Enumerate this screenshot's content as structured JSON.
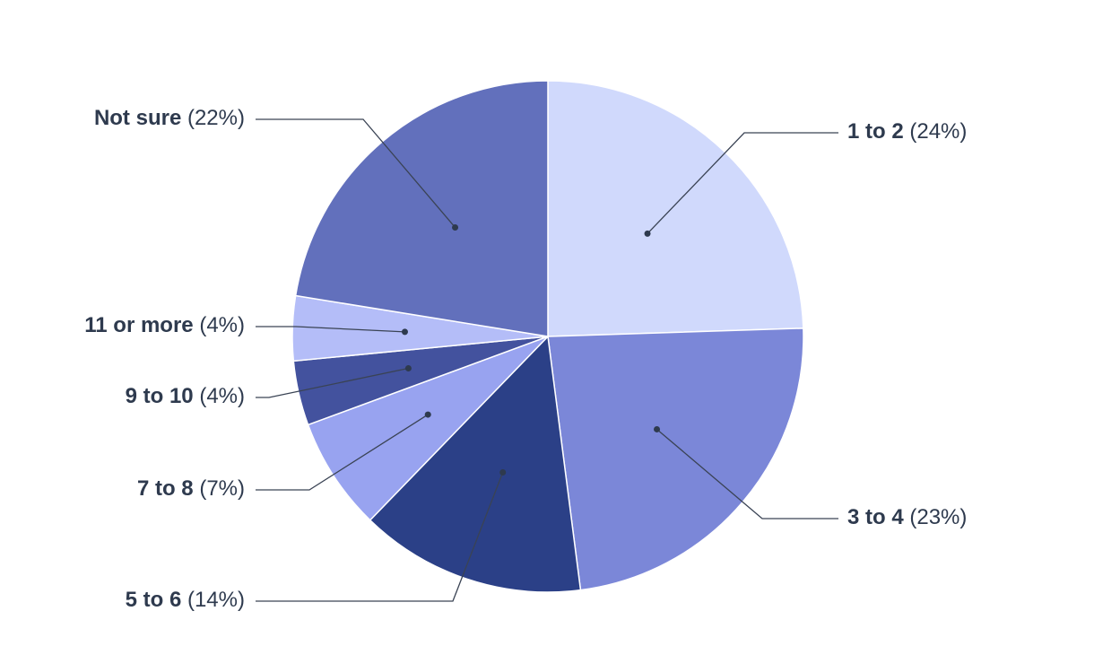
{
  "chart_data": {
    "type": "pie",
    "categories": [
      "1 to 2",
      "3 to 4",
      "5 to 6",
      "7 to 8",
      "9 to 10",
      "11 or more",
      "Not sure"
    ],
    "values": [
      24,
      23,
      14,
      7,
      4,
      4,
      22
    ],
    "value_labels": [
      "(24%)",
      "(23%)",
      "(14%)",
      "(7%)",
      "(4%)",
      "(4%)",
      "(22%)"
    ],
    "colors": [
      "#d0d9fc",
      "#7b87d8",
      "#2b4087",
      "#98a3f0",
      "#43529e",
      "#b4bdf8",
      "#6270bc"
    ]
  }
}
